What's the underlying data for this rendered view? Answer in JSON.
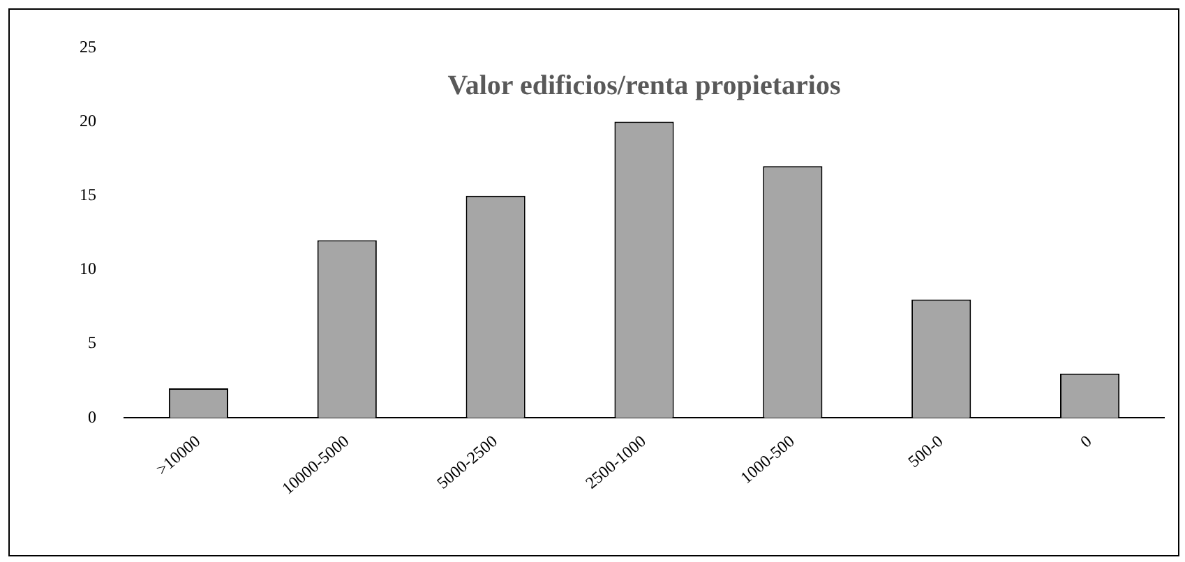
{
  "chart_data": {
    "type": "bar",
    "title": "Valor edificios/renta propietarios",
    "categories": [
      ">10000",
      "10000-5000",
      "5000-2500",
      "2500-1000",
      "1000-500",
      "500-0",
      "0"
    ],
    "values": [
      2,
      12,
      15,
      20,
      17,
      8,
      3
    ],
    "color": "#a6a6a6",
    "ylim": [
      0,
      25
    ],
    "yticks": [
      0,
      5,
      10,
      15,
      20,
      25
    ],
    "grid": false,
    "legend": false
  }
}
